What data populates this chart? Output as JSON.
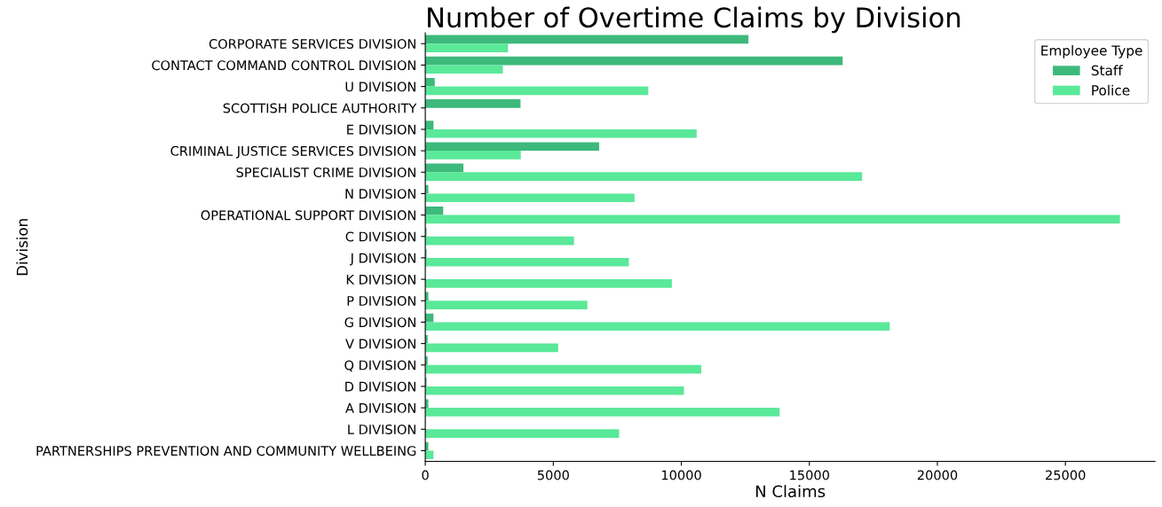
{
  "chart_data": {
    "type": "bar",
    "orientation": "horizontal",
    "title": "Number of Overtime Claims by Division",
    "xlabel": "N Claims",
    "ylabel": "Division",
    "legend_title": "Employee Type",
    "legend": "top right",
    "categories": [
      "CORPORATE SERVICES DIVISION",
      "CONTACT COMMAND CONTROL DIVISION",
      "U DIVISION",
      "SCOTTISH POLICE AUTHORITY",
      "E DIVISION",
      "CRIMINAL JUSTICE SERVICES DIVISION",
      "SPECIALIST CRIME DIVISION",
      "N DIVISION",
      "OPERATIONAL SUPPORT DIVISION",
      "C DIVISION",
      "J DIVISION",
      "K DIVISION",
      "P DIVISION",
      "G DIVISION",
      "V DIVISION",
      "Q DIVISION",
      "D DIVISION",
      "A DIVISION",
      "L DIVISION",
      "PARTNERSHIPS PREVENTION AND COMMUNITY WELLBEING"
    ],
    "series": [
      {
        "name": "Staff",
        "color": "#3cb97b",
        "values": [
          12620,
          16300,
          370,
          3720,
          320,
          6790,
          1490,
          120,
          700,
          50,
          50,
          null,
          120,
          320,
          90,
          90,
          50,
          120,
          null,
          120
        ]
      },
      {
        "name": "Police",
        "color": "#5ae899",
        "values": [
          3230,
          3030,
          8710,
          null,
          10600,
          3730,
          17060,
          8170,
          27130,
          5810,
          7950,
          9630,
          6330,
          18140,
          5190,
          10780,
          10100,
          13840,
          7570,
          320
        ]
      }
    ],
    "xlim": [
      0,
      28500
    ],
    "xticks": [
      0,
      5000,
      10000,
      15000,
      20000,
      25000
    ],
    "grid": false
  }
}
